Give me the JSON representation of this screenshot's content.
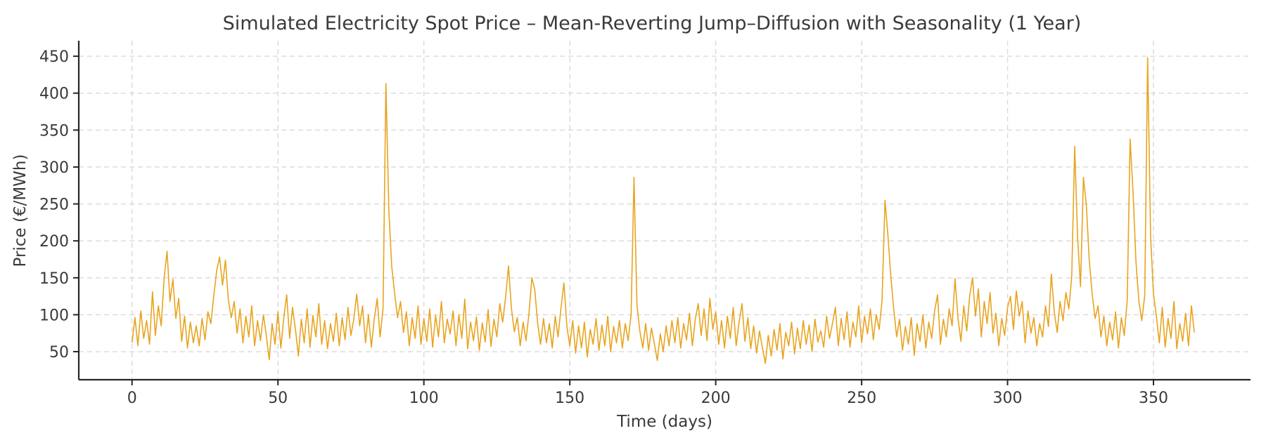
{
  "figure": {
    "background": "#ffffff",
    "text_color": "#3a3a3a",
    "axis_color": "#262626",
    "grid_color": "#d9d9d9"
  },
  "chart_data": {
    "type": "line",
    "title": "Simulated Electricity Spot Price – Mean-Reverting Jump–Diffusion with Seasonality (1 Year)",
    "xlabel": "Time (days)",
    "ylabel": "Price (€/MWh)",
    "line_color": "#E8A41F",
    "grid": true,
    "grid_style": "dashed",
    "legend": "none",
    "x_ticks": [
      0,
      50,
      100,
      150,
      200,
      250,
      300,
      350
    ],
    "y_ticks": [
      50,
      100,
      150,
      200,
      250,
      300,
      350,
      400,
      450
    ],
    "xlim": [
      -18.25,
      383.25
    ],
    "ylim": [
      12,
      471
    ],
    "x_start": 0,
    "x_step": 1,
    "n_points": 365,
    "values": [
      62,
      96,
      58,
      105,
      68,
      92,
      60,
      131,
      72,
      112,
      85,
      150,
      186,
      118,
      148,
      95,
      122,
      64,
      98,
      55,
      90,
      62,
      85,
      58,
      95,
      66,
      104,
      88,
      125,
      160,
      178,
      140,
      174,
      120,
      96,
      118,
      75,
      108,
      62,
      98,
      70,
      112,
      58,
      92,
      65,
      100,
      72,
      39,
      88,
      60,
      104,
      55,
      96,
      127,
      68,
      110,
      80,
      44,
      94,
      62,
      108,
      56,
      99,
      70,
      115,
      60,
      92,
      54,
      88,
      64,
      102,
      58,
      96,
      66,
      110,
      72,
      94,
      128,
      85,
      112,
      62,
      100,
      56,
      94,
      122,
      70,
      108,
      413,
      240,
      165,
      128,
      96,
      118,
      76,
      104,
      58,
      96,
      68,
      112,
      60,
      95,
      64,
      108,
      56,
      99,
      70,
      118,
      62,
      94,
      74,
      105,
      58,
      100,
      68,
      121,
      54,
      90,
      65,
      97,
      52,
      89,
      63,
      107,
      57,
      94,
      70,
      115,
      90,
      124,
      166,
      108,
      77,
      96,
      58,
      90,
      65,
      102,
      150,
      134,
      88,
      60,
      95,
      62,
      88,
      55,
      98,
      70,
      110,
      143,
      84,
      58,
      92,
      48,
      85,
      55,
      90,
      43,
      80,
      60,
      95,
      52,
      86,
      58,
      98,
      50,
      84,
      62,
      92,
      55,
      88,
      65,
      100,
      286,
      114,
      78,
      55,
      88,
      52,
      82,
      60,
      38,
      74,
      50,
      85,
      58,
      92,
      62,
      96,
      55,
      88,
      66,
      102,
      58,
      94,
      115,
      72,
      108,
      65,
      122,
      80,
      104,
      60,
      92,
      55,
      98,
      68,
      110,
      58,
      90,
      115,
      64,
      96,
      54,
      85,
      48,
      78,
      55,
      34,
      72,
      44,
      80,
      52,
      88,
      40,
      76,
      58,
      90,
      47,
      82,
      54,
      92,
      60,
      86,
      50,
      94,
      63,
      78,
      56,
      98,
      68,
      88,
      110,
      58,
      95,
      66,
      104,
      56,
      90,
      70,
      112,
      62,
      98,
      74,
      108,
      66,
      100,
      80,
      120,
      255,
      208,
      152,
      108,
      70,
      94,
      52,
      84,
      60,
      96,
      45,
      88,
      64,
      100,
      55,
      90,
      68,
      105,
      127,
      60,
      94,
      70,
      108,
      85,
      149,
      96,
      64,
      112,
      78,
      125,
      150,
      98,
      135,
      70,
      118,
      88,
      130,
      75,
      102,
      58,
      95,
      72,
      110,
      125,
      80,
      132,
      98,
      118,
      62,
      105,
      75,
      96,
      58,
      88,
      70,
      112,
      84,
      155,
      104,
      76,
      118,
      92,
      130,
      108,
      152,
      328,
      205,
      138,
      286,
      248,
      174,
      128,
      95,
      112,
      70,
      98,
      58,
      90,
      66,
      104,
      55,
      96,
      72,
      120,
      338,
      265,
      172,
      118,
      92,
      126,
      448,
      206,
      128,
      98,
      62,
      110,
      56,
      95,
      68,
      118,
      54,
      88,
      64,
      102,
      58,
      112,
      76
    ]
  }
}
